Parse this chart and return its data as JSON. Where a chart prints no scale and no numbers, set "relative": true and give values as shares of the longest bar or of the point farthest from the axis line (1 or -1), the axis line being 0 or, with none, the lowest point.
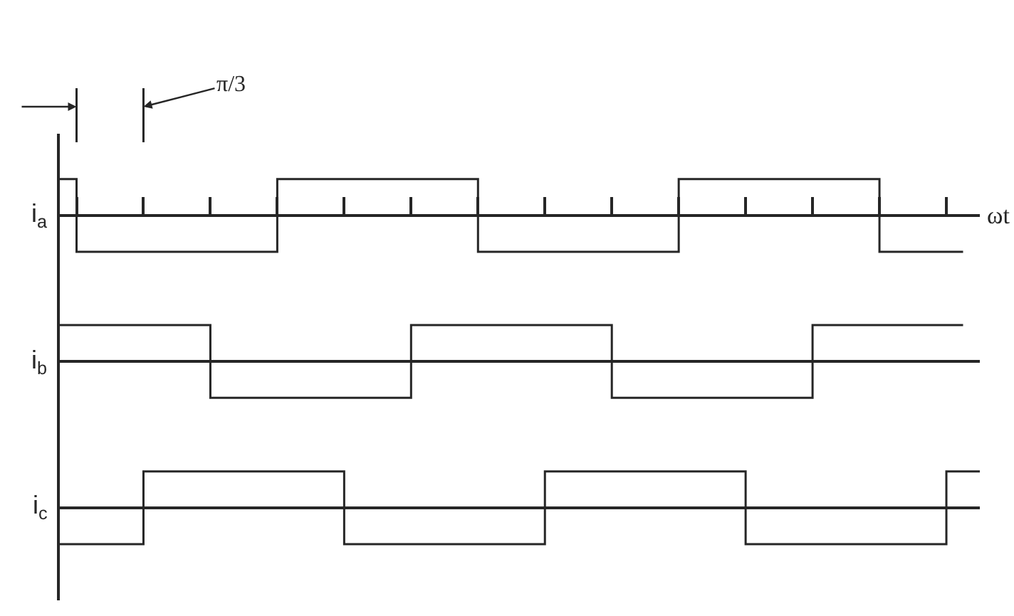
{
  "chart_data": [
    {
      "type": "step",
      "relative": true,
      "xlabel": "ωt",
      "annotations": [
        "π/3"
      ],
      "categories": [
        null,
        null,
        null,
        null,
        null,
        null,
        null,
        null,
        null,
        null,
        null,
        null,
        null,
        null,
        null,
        null,
        null,
        null,
        null,
        null,
        null,
        null,
        null,
        null,
        null,
        null,
        null,
        null,
        null,
        null,
        null,
        null,
        null,
        null,
        null,
        null,
        null,
        null,
        null,
        null,
        null,
        null,
        null,
        null,
        null,
        null,
        null,
        null,
        null,
        null,
        null,
        null,
        null,
        null,
        null,
        null
      ],
      "series": [
        {
          "name": "i$_{a}$",
          "color": "#262626",
          "values": [
            1,
            -1,
            -1,
            -1,
            -1,
            -1,
            -1,
            -1,
            -1,
            -1,
            -1,
            -1,
            -1,
            1,
            1,
            1,
            1,
            1,
            1,
            1,
            1,
            1,
            1,
            1,
            1,
            -1,
            -1,
            -1,
            -1,
            -1,
            -1,
            -1,
            -1,
            -1,
            -1,
            -1,
            -1,
            1,
            1,
            1,
            1,
            1,
            1,
            1,
            1,
            1,
            1,
            1,
            1,
            -1,
            -1,
            -1,
            -1,
            -1,
            -1,
            null
          ]
        }
      ]
    },
    {
      "type": "step",
      "relative": true,
      "categories": [
        null,
        null,
        null,
        null,
        null,
        null,
        null,
        null,
        null,
        null,
        null,
        null,
        null,
        null,
        null,
        null,
        null,
        null,
        null,
        null,
        null,
        null,
        null,
        null,
        null,
        null,
        null,
        null,
        null,
        null,
        null,
        null,
        null,
        null,
        null,
        null,
        null,
        null,
        null,
        null,
        null,
        null,
        null,
        null,
        null,
        null,
        null,
        null,
        null,
        null,
        null,
        null,
        null,
        null,
        null,
        null
      ],
      "series": [
        {
          "name": "i$_{b}$",
          "color": "#262626",
          "values": [
            1,
            1,
            1,
            1,
            1,
            1,
            1,
            1,
            1,
            -1,
            -1,
            -1,
            -1,
            -1,
            -1,
            -1,
            -1,
            -1,
            -1,
            -1,
            -1,
            1,
            1,
            1,
            1,
            1,
            1,
            1,
            1,
            1,
            1,
            1,
            1,
            -1,
            -1,
            -1,
            -1,
            -1,
            -1,
            -1,
            -1,
            -1,
            -1,
            -1,
            -1,
            1,
            1,
            1,
            1,
            1,
            1,
            1,
            1,
            1,
            1,
            null
          ]
        }
      ]
    },
    {
      "type": "step",
      "relative": true,
      "categories": [
        null,
        null,
        null,
        null,
        null,
        null,
        null,
        null,
        null,
        null,
        null,
        null,
        null,
        null,
        null,
        null,
        null,
        null,
        null,
        null,
        null,
        null,
        null,
        null,
        null,
        null,
        null,
        null,
        null,
        null,
        null,
        null,
        null,
        null,
        null,
        null,
        null,
        null,
        null,
        null,
        null,
        null,
        null,
        null,
        null,
        null,
        null,
        null,
        null,
        null,
        null,
        null,
        null,
        null,
        null,
        null
      ],
      "series": [
        {
          "name": "i$_{c}$",
          "color": "#262626",
          "values": [
            -1,
            -1,
            -1,
            -1,
            -1,
            1,
            1,
            1,
            1,
            1,
            1,
            1,
            1,
            1,
            1,
            1,
            1,
            -1,
            -1,
            -1,
            -1,
            -1,
            -1,
            -1,
            -1,
            -1,
            -1,
            -1,
            -1,
            1,
            1,
            1,
            1,
            1,
            1,
            1,
            1,
            1,
            1,
            1,
            1,
            -1,
            -1,
            -1,
            -1,
            -1,
            -1,
            -1,
            -1,
            -1,
            -1,
            -1,
            -1,
            1,
            1,
            1
          ]
        }
      ]
    }
  ]
}
